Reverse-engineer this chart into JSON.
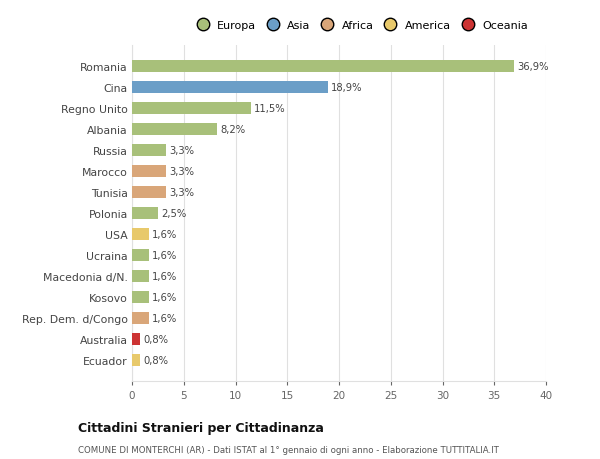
{
  "categories": [
    "Romania",
    "Cina",
    "Regno Unito",
    "Albania",
    "Russia",
    "Marocco",
    "Tunisia",
    "Polonia",
    "USA",
    "Ucraina",
    "Macedonia d/N.",
    "Kosovo",
    "Rep. Dem. d/Congo",
    "Australia",
    "Ecuador"
  ],
  "values": [
    36.9,
    18.9,
    11.5,
    8.2,
    3.3,
    3.3,
    3.3,
    2.5,
    1.6,
    1.6,
    1.6,
    1.6,
    1.6,
    0.8,
    0.8
  ],
  "labels": [
    "36,9%",
    "18,9%",
    "11,5%",
    "8,2%",
    "3,3%",
    "3,3%",
    "3,3%",
    "2,5%",
    "1,6%",
    "1,6%",
    "1,6%",
    "1,6%",
    "1,6%",
    "0,8%",
    "0,8%"
  ],
  "colors": [
    "#a8c07a",
    "#6b9ec7",
    "#a8c07a",
    "#a8c07a",
    "#a8c07a",
    "#d9a679",
    "#d9a679",
    "#a8c07a",
    "#e8c96b",
    "#a8c07a",
    "#a8c07a",
    "#a8c07a",
    "#d9a679",
    "#cc3333",
    "#e8c96b"
  ],
  "legend_labels": [
    "Europa",
    "Asia",
    "Africa",
    "America",
    "Oceania"
  ],
  "legend_colors": [
    "#a8c07a",
    "#6b9ec7",
    "#d9a679",
    "#e8c96b",
    "#cc3333"
  ],
  "title": "Cittadini Stranieri per Cittadinanza",
  "subtitle": "COMUNE DI MONTERCHI (AR) - Dati ISTAT al 1° gennaio di ogni anno - Elaborazione TUTTITALIA.IT",
  "xlim": [
    0,
    40
  ],
  "xticks": [
    0,
    5,
    10,
    15,
    20,
    25,
    30,
    35,
    40
  ],
  "bg_color": "#ffffff",
  "grid_color": "#e0e0e0",
  "bar_height": 0.55
}
